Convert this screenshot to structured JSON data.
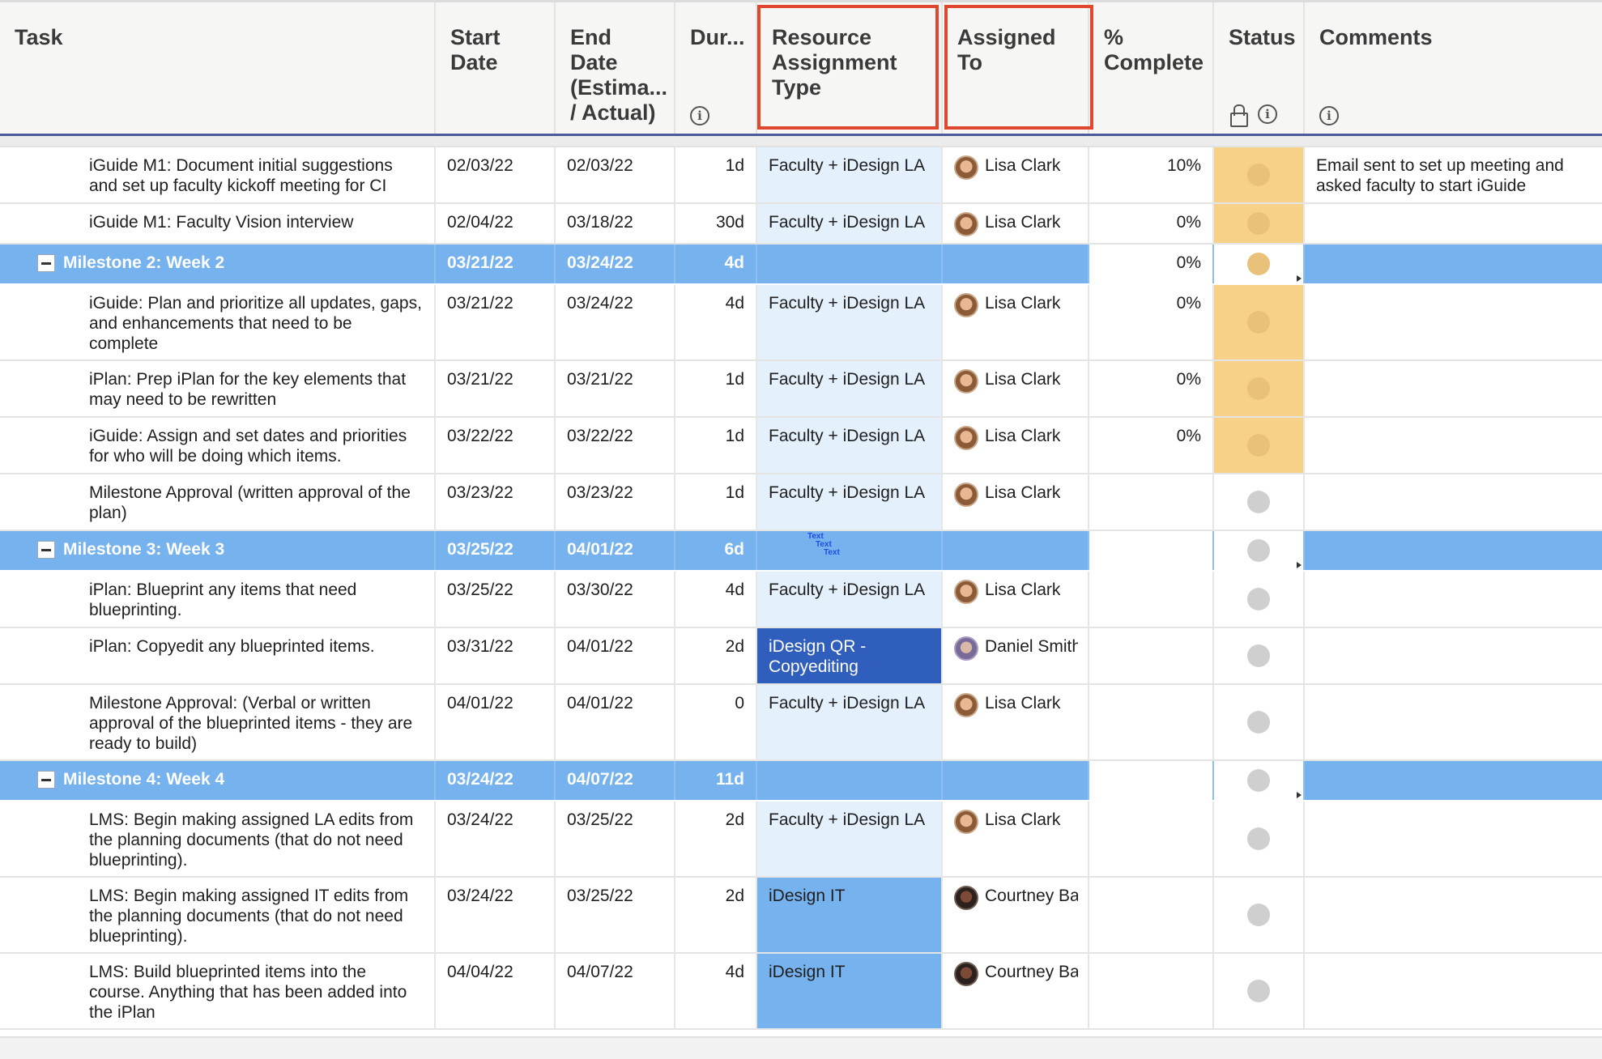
{
  "header": {
    "task": "Task",
    "start_date": "Start Date",
    "end_date": "End Date (Estima... / Actual)",
    "duration": "Dur...",
    "resource": "Resource Assignment Type",
    "assigned": "Assigned To",
    "complete": "% Complete",
    "status": "Status",
    "comments": "Comments"
  },
  "icons": {
    "info": "i",
    "lock": "lock-icon"
  },
  "rows": [
    {
      "type": "task",
      "task": "iGuide M1: Document initial suggestions and set up faculty kickoff meeting for CI",
      "start": "02/03/22",
      "end": "02/03/22",
      "dur": "1d",
      "resource": "Faculty + iDesign LA",
      "assigned": "Lisa Clark",
      "complete": "10%",
      "status": "yellow",
      "comments": "Email sent to set up meeting and asked faculty to start iGuide"
    },
    {
      "type": "task",
      "task": "iGuide M1: Faculty Vision interview",
      "start": "02/04/22",
      "end": "03/18/22",
      "dur": "30d",
      "resource": "Faculty + iDesign LA",
      "assigned": "Lisa Clark",
      "complete": "0%",
      "status": "yellow",
      "comments": ""
    },
    {
      "type": "milestone",
      "task": "Milestone 2: Week 2",
      "start": "03/21/22",
      "end": "03/24/22",
      "dur": "4d",
      "complete": "0%",
      "status": "yellow"
    },
    {
      "type": "task",
      "task": "iGuide: Plan and prioritize all updates, gaps, and enhancements that need to be complete",
      "start": "03/21/22",
      "end": "03/24/22",
      "dur": "4d",
      "resource": "Faculty + iDesign LA",
      "assigned": "Lisa Clark",
      "complete": "0%",
      "status": "yellow",
      "comments": ""
    },
    {
      "type": "task",
      "task": "iPlan: Prep iPlan for the key elements that may need to be rewritten",
      "start": "03/21/22",
      "end": "03/21/22",
      "dur": "1d",
      "resource": "Faculty + iDesign LA",
      "assigned": "Lisa Clark",
      "complete": "0%",
      "status": "yellow",
      "comments": ""
    },
    {
      "type": "task",
      "task": "iGuide: Assign and set dates and priorities for who will be doing which items.",
      "start": "03/22/22",
      "end": "03/22/22",
      "dur": "1d",
      "resource": "Faculty + iDesign LA",
      "assigned": "Lisa Clark",
      "complete": "0%",
      "status": "yellow",
      "comments": ""
    },
    {
      "type": "task",
      "task": "Milestone Approval (written approval of the plan)",
      "start": "03/23/22",
      "end": "03/23/22",
      "dur": "1d",
      "resource": "Faculty + iDesign LA",
      "assigned": "Lisa Clark",
      "complete": "",
      "status": "grey",
      "comments": ""
    },
    {
      "type": "milestone",
      "task": "Milestone 3: Week 3",
      "start": "03/25/22",
      "end": "04/01/22",
      "dur": "6d",
      "complete": "",
      "status": "grey",
      "tiny": [
        "Text",
        "Text",
        "Text"
      ]
    },
    {
      "type": "task",
      "task": "iPlan: Blueprint any items that need blueprinting.",
      "start": "03/25/22",
      "end": "03/30/22",
      "dur": "4d",
      "resource": "Faculty + iDesign LA",
      "assigned": "Lisa Clark",
      "complete": "",
      "status": "grey",
      "comments": ""
    },
    {
      "type": "task",
      "task": "iPlan: Copyedit any blueprinted items.",
      "start": "03/31/22",
      "end": "04/01/22",
      "dur": "2d",
      "resource": "iDesign QR - Copyediting",
      "res_style": "qr",
      "assigned": "Daniel Smith",
      "avatar": "daniel",
      "complete": "",
      "status": "grey",
      "comments": ""
    },
    {
      "type": "task",
      "task": "Milestone Approval: (Verbal or written approval of the blueprinted items - they are ready to build)",
      "start": "04/01/22",
      "end": "04/01/22",
      "dur": "0",
      "resource": "Faculty + iDesign LA",
      "assigned": "Lisa Clark",
      "complete": "",
      "status": "grey",
      "comments": ""
    },
    {
      "type": "milestone",
      "task": "Milestone 4: Week 4",
      "start": "03/24/22",
      "end": "04/07/22",
      "dur": "11d",
      "complete": "",
      "status": "grey"
    },
    {
      "type": "task",
      "task": "LMS: Begin making assigned LA edits from the planning documents (that do not need blueprinting).",
      "start": "03/24/22",
      "end": "03/25/22",
      "dur": "2d",
      "resource": "Faculty + iDesign LA",
      "assigned": "Lisa Clark",
      "complete": "",
      "status": "grey",
      "comments": ""
    },
    {
      "type": "task",
      "task": "LMS: Begin making assigned IT edits from the planning documents (that do not need blueprinting).",
      "start": "03/24/22",
      "end": "03/25/22",
      "dur": "2d",
      "resource": "iDesign IT",
      "res_style": "it",
      "assigned": "Courtney Ba",
      "avatar": "courtney",
      "complete": "",
      "status": "grey",
      "comments": ""
    },
    {
      "type": "task",
      "task": "LMS: Build blueprinted items into the course. Anything that has been added into the iPlan",
      "start": "04/04/22",
      "end": "04/07/22",
      "dur": "4d",
      "resource": "iDesign IT",
      "res_style": "it",
      "assigned": "Courtney Ba",
      "avatar": "courtney",
      "complete": "",
      "status": "grey",
      "comments": ""
    }
  ],
  "colors": {
    "milestone_blue": "#76b2ee",
    "status_yellow": "#f7d188",
    "highlight_red": "#e0472f",
    "qr_blue": "#2f5ebd"
  }
}
